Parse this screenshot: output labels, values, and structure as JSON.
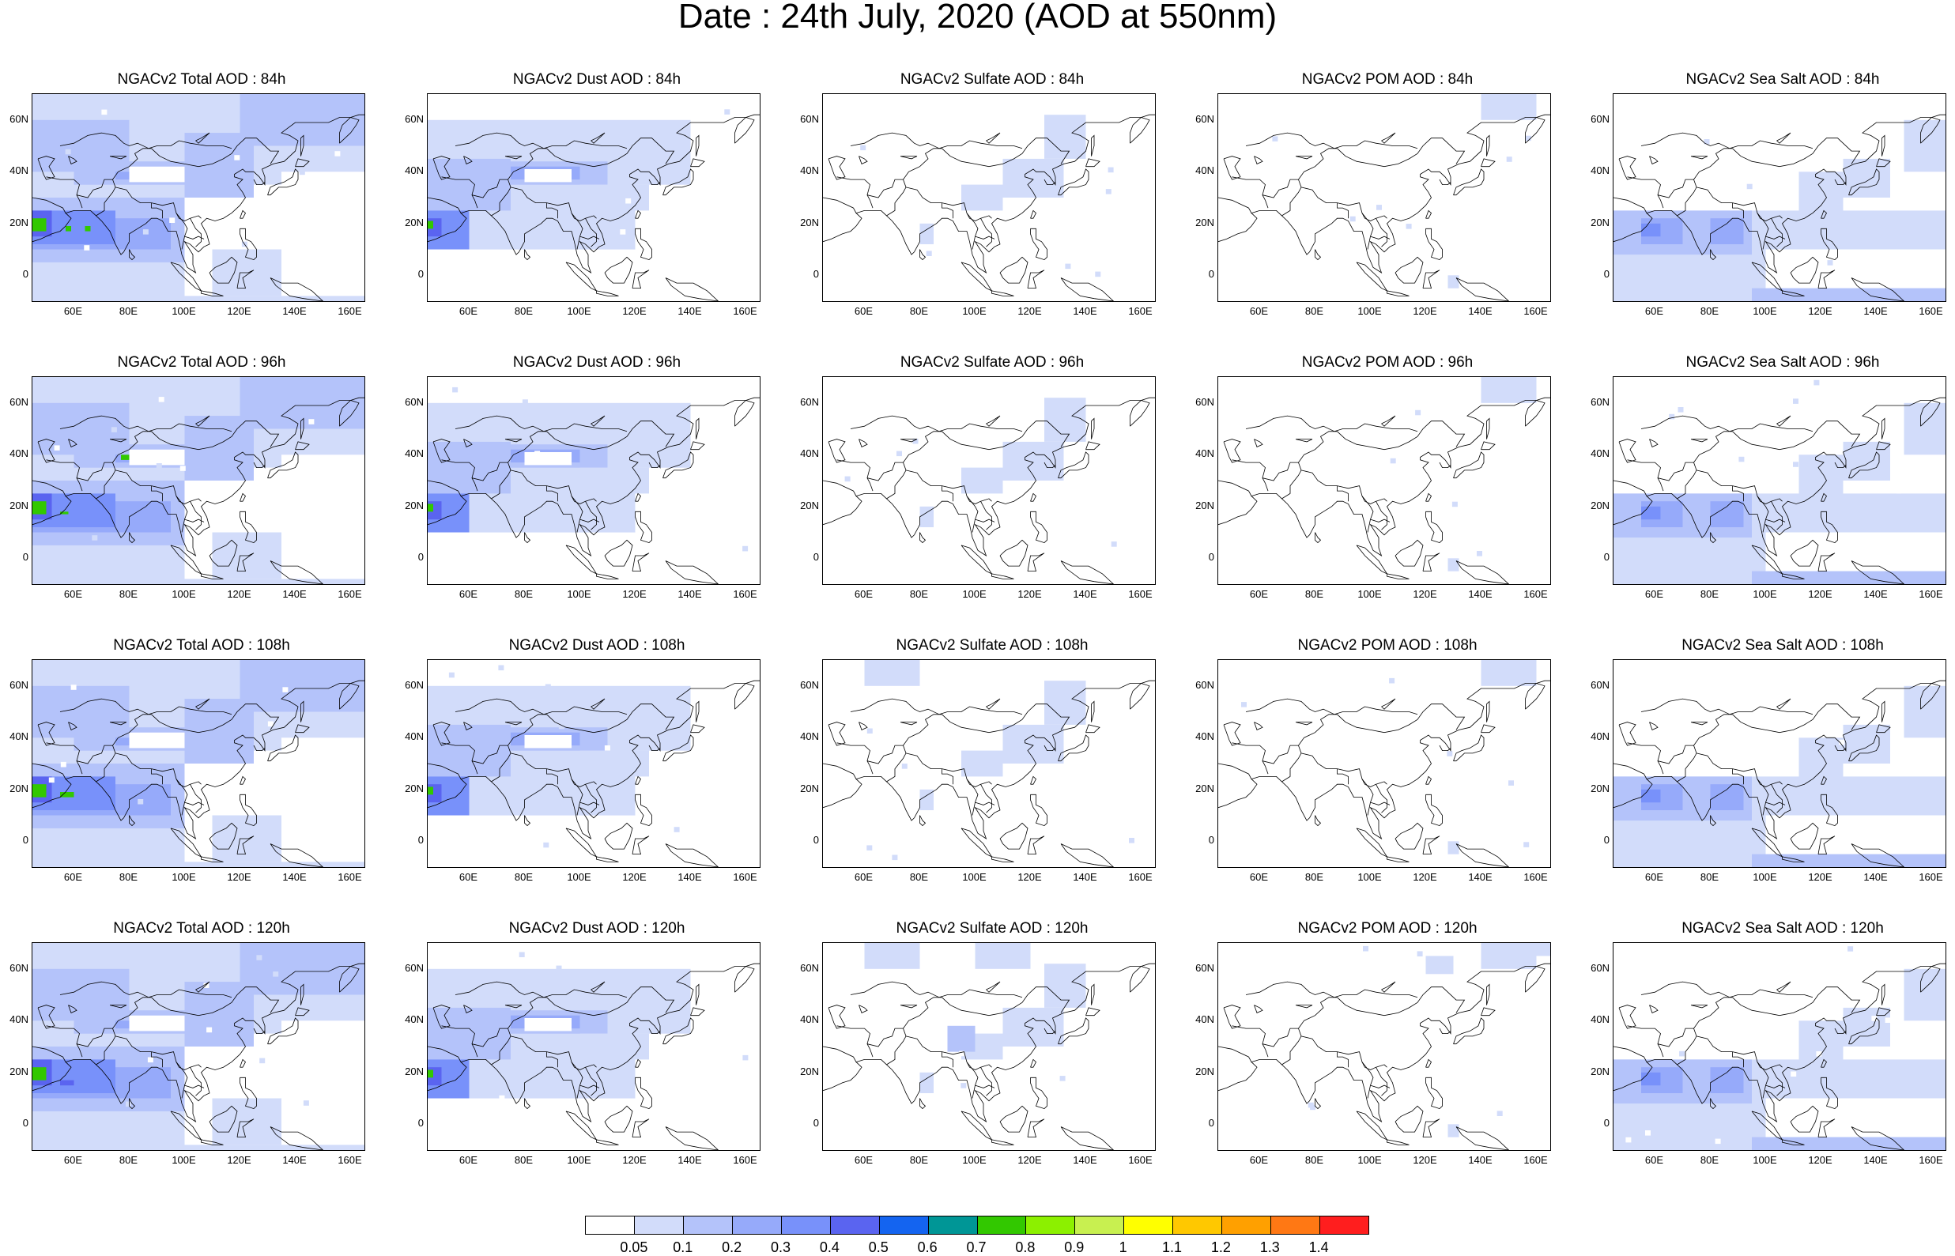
{
  "title": "Date : 24th July, 2020 (AOD at 550nm)",
  "panels": [
    {
      "title": "NGACv2 Total AOD : 84h",
      "kind": "total"
    },
    {
      "title": "NGACv2 Dust AOD : 84h",
      "kind": "dust"
    },
    {
      "title": "NGACv2 Sulfate AOD : 84h",
      "kind": "sulfate"
    },
    {
      "title": "NGACv2 POM AOD : 84h",
      "kind": "pom"
    },
    {
      "title": "NGACv2 Sea Salt AOD : 84h",
      "kind": "seasalt"
    },
    {
      "title": "NGACv2 Total AOD : 96h",
      "kind": "total"
    },
    {
      "title": "NGACv2 Dust AOD : 96h",
      "kind": "dust"
    },
    {
      "title": "NGACv2 Sulfate AOD : 96h",
      "kind": "sulfate"
    },
    {
      "title": "NGACv2 POM AOD : 96h",
      "kind": "pom"
    },
    {
      "title": "NGACv2 Sea Salt AOD : 96h",
      "kind": "seasalt"
    },
    {
      "title": "NGACv2 Total AOD : 108h",
      "kind": "total"
    },
    {
      "title": "NGACv2 Dust AOD : 108h",
      "kind": "dust"
    },
    {
      "title": "NGACv2 Sulfate AOD : 108h",
      "kind": "sulfate"
    },
    {
      "title": "NGACv2 POM AOD : 108h",
      "kind": "pom"
    },
    {
      "title": "NGACv2 Sea Salt AOD : 108h",
      "kind": "seasalt"
    },
    {
      "title": "NGACv2 Total AOD : 120h",
      "kind": "total"
    },
    {
      "title": "NGACv2 Dust AOD : 120h",
      "kind": "dust"
    },
    {
      "title": "NGACv2 Sulfate AOD : 120h",
      "kind": "sulfate"
    },
    {
      "title": "NGACv2 POM AOD : 120h",
      "kind": "pom"
    },
    {
      "title": "NGACv2 Sea Salt  AOD : 120h",
      "kind": "seasalt"
    }
  ],
  "y_ticks": [
    "60N",
    "40N",
    "20N",
    "0"
  ],
  "x_ticks": [
    "60E",
    "80E",
    "100E",
    "120E",
    "140E",
    "160E"
  ],
  "colorbar": {
    "labels": [
      "0.05",
      "0.1",
      "0.2",
      "0.3",
      "0.4",
      "0.5",
      "0.6",
      "0.7",
      "0.8",
      "0.9",
      "1",
      "1.1",
      "1.2",
      "1.3",
      "1.4"
    ],
    "colors": [
      "#ffffff",
      "#d2dcfa",
      "#b4c3fa",
      "#96aafa",
      "#7891fa",
      "#5a64f0",
      "#1464f0",
      "#009696",
      "#32c800",
      "#8cf000",
      "#c8f050",
      "#ffff00",
      "#ffc800",
      "#ffa000",
      "#ff7814",
      "#ff1e1e"
    ]
  },
  "colors": {
    "total_shade": "#b4c3fa",
    "light_shade": "#d2dcfa",
    "mid_shade": "#96aafa",
    "dark_shade": "#5a64f0",
    "green_spot": "#32c800",
    "coastline": "#000000"
  }
}
